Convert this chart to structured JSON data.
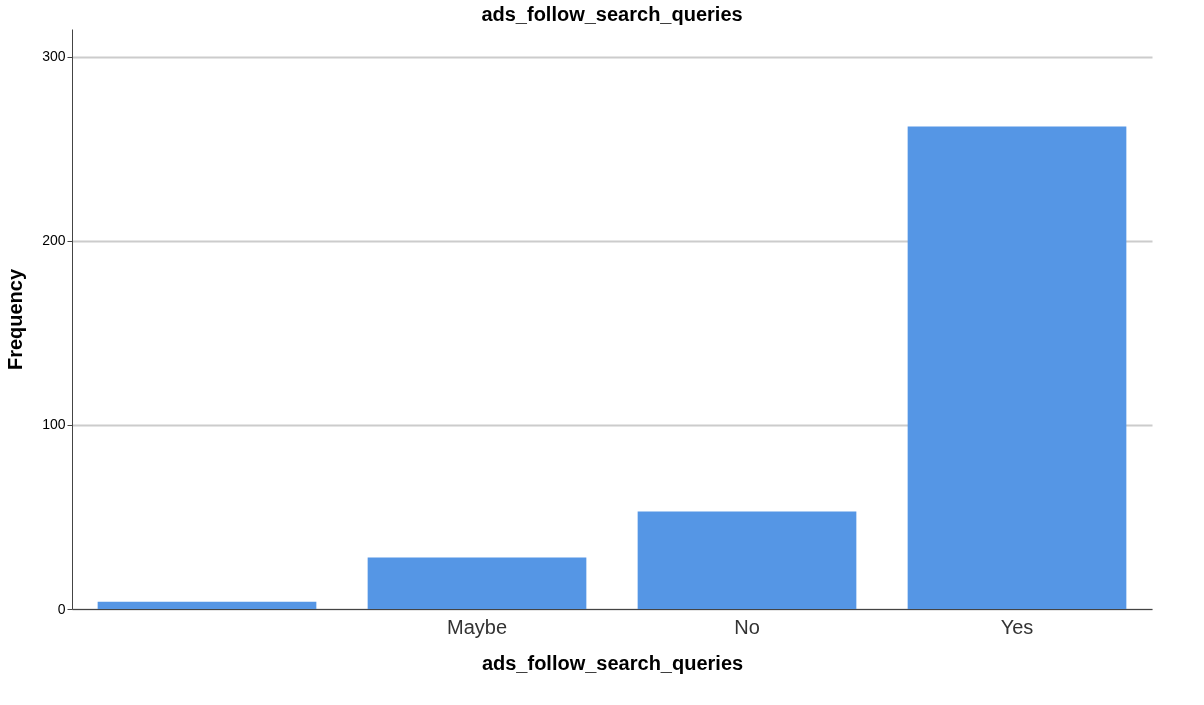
{
  "chart_data": {
    "type": "bar",
    "title": "ads_follow_search_queries",
    "xlabel": "ads_follow_search_queries",
    "ylabel": "Frequency",
    "categories": [
      null,
      "Maybe",
      "No",
      "Yes"
    ],
    "values": [
      4,
      28,
      53,
      262
    ],
    "color": "#5596e5",
    "ylim": [
      0,
      315
    ],
    "yticks": [
      0,
      100,
      200,
      300
    ],
    "grid": "y"
  }
}
